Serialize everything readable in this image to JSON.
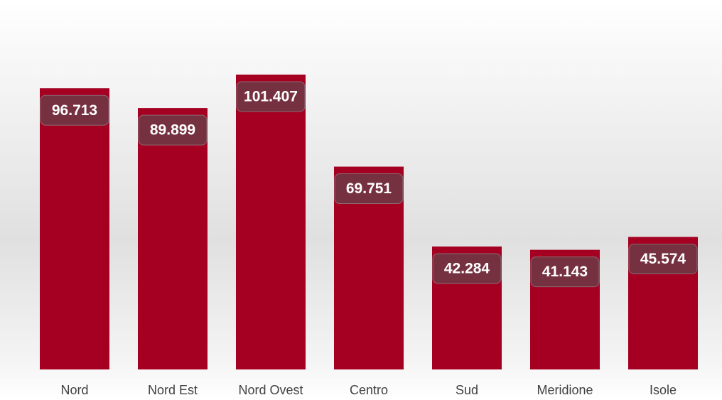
{
  "chart_data": {
    "type": "bar",
    "categories": [
      "Nord",
      "Nord Est",
      "Nord Ovest",
      "Centro",
      "Sud",
      "Meridione",
      "Isole"
    ],
    "values": [
      96713,
      89899,
      101407,
      69751,
      42284,
      41143,
      45574
    ],
    "value_labels": [
      "96.713",
      "89.899",
      "101.407",
      "69.751",
      "42.284",
      "41.143",
      "45.574"
    ],
    "color": "#a50021"
  }
}
